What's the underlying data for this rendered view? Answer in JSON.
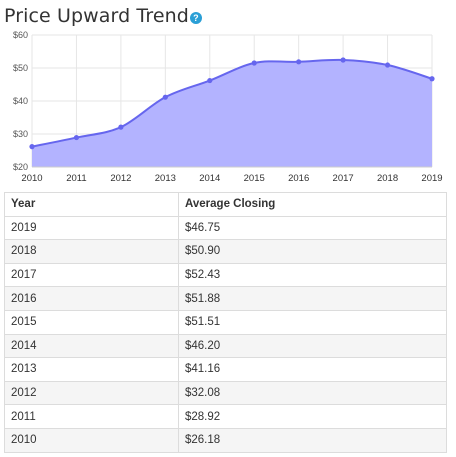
{
  "header": {
    "title": "Price Upward Trend",
    "help_icon": "help-icon",
    "help_glyph": "?"
  },
  "colors": {
    "area_fill": "#b3b3ff",
    "line": "#6666ee",
    "grid": "#e6e6e6",
    "help": "#2a9fd6"
  },
  "chart_data": {
    "type": "area",
    "x": [
      2010,
      2011,
      2012,
      2013,
      2014,
      2015,
      2016,
      2017,
      2018,
      2019
    ],
    "x_tick_labels": [
      "2010",
      "2011",
      "2012",
      "2013",
      "2014",
      "2015",
      "2016",
      "2017",
      "2018",
      "2019"
    ],
    "values": [
      26.18,
      28.92,
      32.08,
      41.16,
      46.2,
      51.51,
      51.88,
      52.43,
      50.9,
      46.75
    ],
    "ylim": [
      20,
      60
    ],
    "y_ticks": [
      20,
      30,
      40,
      50,
      60
    ],
    "y_tick_labels": [
      "$20",
      "$30",
      "$40",
      "$50",
      "$60"
    ],
    "grid": true,
    "title": "Price Upward Trend",
    "xlabel": "",
    "ylabel": ""
  },
  "table": {
    "headers": [
      "Year",
      "Average Closing"
    ],
    "rows": [
      [
        "2019",
        "$46.75"
      ],
      [
        "2018",
        "$50.90"
      ],
      [
        "2017",
        "$52.43"
      ],
      [
        "2016",
        "$51.88"
      ],
      [
        "2015",
        "$51.51"
      ],
      [
        "2014",
        "$46.20"
      ],
      [
        "2013",
        "$41.16"
      ],
      [
        "2012",
        "$32.08"
      ],
      [
        "2011",
        "$28.92"
      ],
      [
        "2010",
        "$26.18"
      ]
    ]
  }
}
